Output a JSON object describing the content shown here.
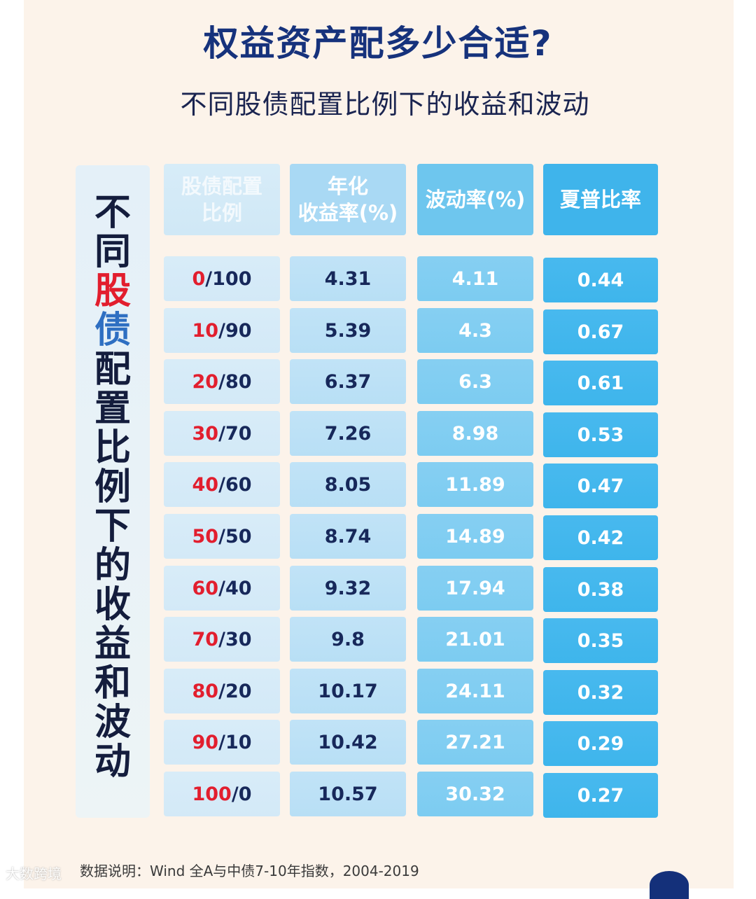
{
  "title": "权益资产配多少合适?",
  "subtitle": "不同股债配置比例下的收益和波动",
  "side_title": {
    "chars": [
      {
        "t": "不",
        "c": "dark"
      },
      {
        "t": "同",
        "c": "dark"
      },
      {
        "t": "股",
        "c": "red"
      },
      {
        "t": "债",
        "c": "blue"
      },
      {
        "t": "配",
        "c": "dark"
      },
      {
        "t": "置",
        "c": "dark"
      },
      {
        "t": "比",
        "c": "dark"
      },
      {
        "t": "例",
        "c": "dark"
      },
      {
        "t": "下",
        "c": "dark"
      },
      {
        "t": "的",
        "c": "dark"
      },
      {
        "t": "收",
        "c": "dark"
      },
      {
        "t": "益",
        "c": "dark"
      },
      {
        "t": "和",
        "c": "dark"
      },
      {
        "t": "波",
        "c": "dark"
      },
      {
        "t": "动",
        "c": "dark"
      }
    ]
  },
  "chart_data": {
    "type": "table",
    "columns": [
      "股债配置比例",
      "年化收益率(%)",
      "波动率(%)",
      "夏普比率"
    ],
    "header_lines": [
      [
        "股债配置",
        "比例"
      ],
      [
        "年化",
        "收益率(%)"
      ],
      [
        "波动率(%)"
      ],
      [
        "夏普比率"
      ]
    ],
    "rows": [
      {
        "stock": "0",
        "bond": "100",
        "annual_return": "4.31",
        "volatility": "4.11",
        "sharpe": "0.44"
      },
      {
        "stock": "10",
        "bond": "90",
        "annual_return": "5.39",
        "volatility": "4.3",
        "sharpe": "0.67"
      },
      {
        "stock": "20",
        "bond": "80",
        "annual_return": "6.37",
        "volatility": "6.3",
        "sharpe": "0.61"
      },
      {
        "stock": "30",
        "bond": "70",
        "annual_return": "7.26",
        "volatility": "8.98",
        "sharpe": "0.53"
      },
      {
        "stock": "40",
        "bond": "60",
        "annual_return": "8.05",
        "volatility": "11.89",
        "sharpe": "0.47"
      },
      {
        "stock": "50",
        "bond": "50",
        "annual_return": "8.74",
        "volatility": "14.89",
        "sharpe": "0.42"
      },
      {
        "stock": "60",
        "bond": "40",
        "annual_return": "9.32",
        "volatility": "17.94",
        "sharpe": "0.38"
      },
      {
        "stock": "70",
        "bond": "30",
        "annual_return": "9.8",
        "volatility": "21.01",
        "sharpe": "0.35"
      },
      {
        "stock": "80",
        "bond": "20",
        "annual_return": "10.17",
        "volatility": "24.11",
        "sharpe": "0.32"
      },
      {
        "stock": "90",
        "bond": "10",
        "annual_return": "10.42",
        "volatility": "27.21",
        "sharpe": "0.29"
      },
      {
        "stock": "100",
        "bond": "0",
        "annual_return": "10.57",
        "volatility": "30.32",
        "sharpe": "0.27"
      }
    ]
  },
  "footnote": "数据说明：Wind 全A与中债7-10年指数，2004-2019",
  "watermark": "大数跨境",
  "colors": {
    "title": "#16327c",
    "stock_ratio": "#e21e2e",
    "bond_ratio": "#17285a",
    "col1": "#d5eaf7",
    "col2": "#bce1f6",
    "col3": "#80cdf1",
    "col4": "#42b7ed"
  }
}
